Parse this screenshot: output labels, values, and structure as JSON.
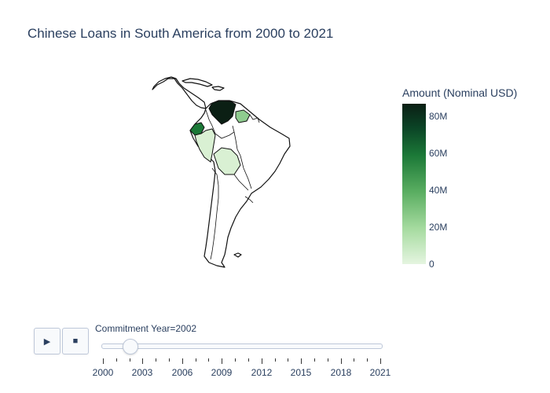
{
  "title": "Chinese Loans in South America from 2000 to 2021",
  "colorbar": {
    "title": "Amount (Nominal USD)",
    "ticks": [
      "0",
      "20M",
      "40M",
      "60M",
      "80M"
    ],
    "colors": [
      "#e5f5e0",
      "#a6dba0",
      "#5aae61",
      "#1b7837",
      "#0b4426",
      "#0b1f14"
    ]
  },
  "slider": {
    "label": "Commitment Year=2002",
    "current_value": 2002,
    "min": 2000,
    "max": 2021,
    "tick_labels": [
      "2000",
      "2003",
      "2006",
      "2009",
      "2012",
      "2015",
      "2018",
      "2021"
    ]
  },
  "controls": {
    "play_icon": "play-icon",
    "stop_icon": "stop-icon"
  },
  "map_data": {
    "region": "South America",
    "shaded_countries": [
      {
        "name": "Venezuela",
        "color": "#0b1f14"
      },
      {
        "name": "Ecuador",
        "color": "#1b7837"
      },
      {
        "name": "Guyana",
        "color": "#8fcc8f"
      },
      {
        "name": "Peru",
        "color": "#d9f0d3"
      },
      {
        "name": "Bolivia",
        "color": "#d9f0d3"
      }
    ]
  }
}
